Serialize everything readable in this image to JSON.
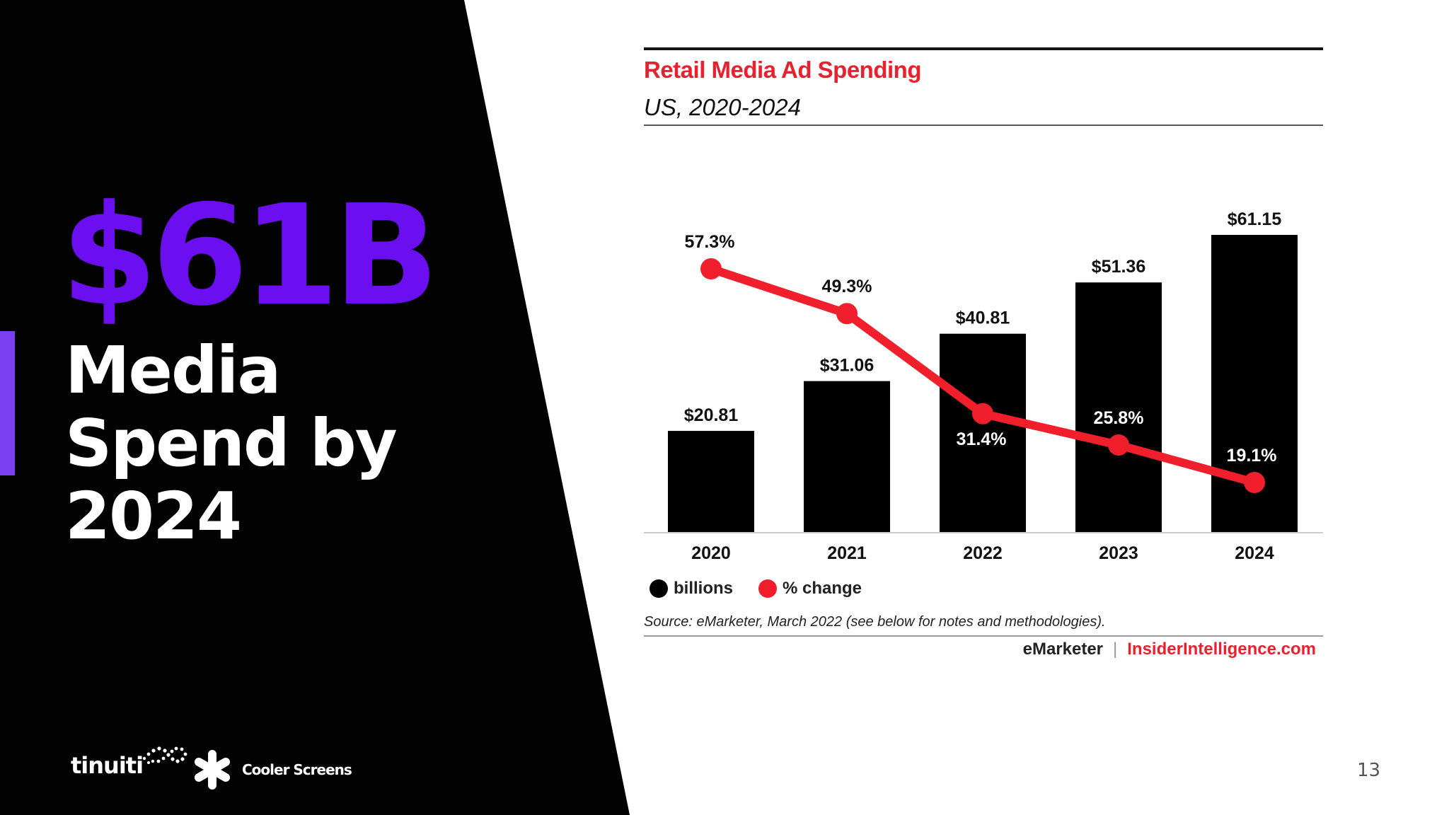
{
  "slide": {
    "headline_big": "$61B",
    "headline_sub": "Media Spend by 2024",
    "page_number": "13",
    "accent_color": "#7b3ff2",
    "headline_color": "#6c0ff0"
  },
  "logos": {
    "tinuiti": "tinuiti",
    "cooler_screens": "Cooler Screens"
  },
  "chart_data": {
    "type": "bar",
    "title": "Retail Media Ad Spending",
    "subtitle": "US, 2020-2024",
    "categories": [
      "2020",
      "2021",
      "2022",
      "2023",
      "2024"
    ],
    "series": [
      {
        "name": "billions",
        "type": "bar",
        "color": "#000000",
        "values": [
          20.81,
          31.06,
          40.81,
          51.36,
          61.15
        ],
        "labels": [
          "$20.81",
          "$31.06",
          "$40.81",
          "$51.36",
          "$61.15"
        ]
      },
      {
        "name": "% change",
        "type": "line",
        "color": "#f01f2b",
        "values": [
          57.3,
          49.3,
          31.4,
          25.8,
          19.1
        ],
        "labels": [
          "57.3%",
          "49.3%",
          "31.4%",
          "25.8%",
          "19.1%"
        ]
      }
    ],
    "ylim_billions": [
      0,
      61.15
    ],
    "ylim_pct": [
      0,
      100
    ],
    "legend_position": "bottom-left",
    "grid": false,
    "source": "Source: eMarketer, March 2022 (see below for notes and methodologies).",
    "brand_left": "eMarketer",
    "brand_separator": "|",
    "brand_right": "InsiderIntelligence.com",
    "accent_color": "#e8212e"
  }
}
